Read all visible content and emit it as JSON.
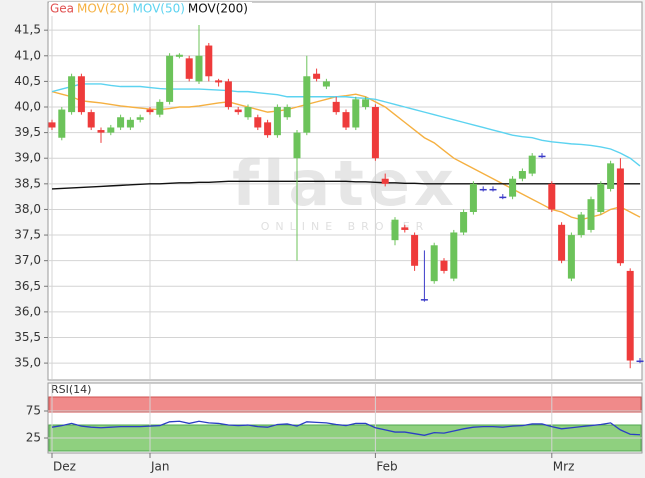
{
  "chart_data": [
    {
      "type": "candlestick",
      "name": "Gea",
      "name_color": "#e05050",
      "watermark": "flatex",
      "watermark_sub": "ONLINE BROKER",
      "categories": [
        "Dez",
        null,
        null,
        null,
        null,
        null,
        null,
        null,
        null,
        null,
        "Jan",
        null,
        null,
        null,
        null,
        null,
        null,
        null,
        null,
        null,
        null,
        null,
        null,
        null,
        null,
        null,
        null,
        null,
        null,
        null,
        null,
        null,
        null,
        "Feb",
        null,
        null,
        null,
        null,
        null,
        null,
        null,
        null,
        null,
        null,
        null,
        null,
        null,
        null,
        null,
        null,
        null,
        "Mrz",
        null,
        null,
        null,
        null,
        null,
        null,
        null,
        null,
        null
      ],
      "open": [
        39.7,
        39.4,
        39.9,
        40.6,
        39.9,
        39.55,
        39.5,
        39.6,
        39.6,
        39.75,
        39.95,
        39.85,
        40.1,
        40.98,
        40.95,
        40.5,
        41.2,
        40.52,
        40.5,
        39.95,
        39.8,
        39.8,
        39.7,
        39.45,
        39.8,
        39.0,
        39.5,
        40.65,
        40.4,
        40.1,
        39.9,
        39.6,
        40.0,
        40.0,
        38.6,
        37.4,
        37.65,
        37.5,
        36.25,
        36.6,
        37.0,
        36.65,
        37.55,
        37.95,
        38.4,
        38.4,
        38.25,
        38.25,
        38.6,
        38.7,
        39.05,
        38.5,
        37.7,
        36.65,
        37.5,
        37.6,
        37.95,
        38.4,
        38.8,
        36.8,
        35.05
      ],
      "high": [
        39.75,
        40.0,
        40.65,
        40.65,
        39.95,
        39.6,
        39.65,
        39.85,
        39.8,
        39.85,
        40.0,
        40.15,
        41.05,
        41.05,
        41.0,
        41.6,
        41.25,
        40.55,
        40.55,
        40.0,
        40.05,
        39.85,
        39.75,
        40.05,
        40.05,
        39.55,
        41.0,
        40.75,
        40.55,
        40.2,
        39.95,
        40.2,
        40.2,
        40.05,
        38.7,
        37.85,
        37.7,
        37.55,
        37.2,
        37.35,
        37.05,
        37.6,
        38.0,
        38.55,
        38.45,
        38.45,
        38.3,
        38.65,
        38.8,
        39.1,
        39.1,
        38.55,
        37.75,
        37.55,
        37.95,
        38.25,
        38.55,
        38.95,
        39.0,
        36.85,
        35.1
      ],
      "low": [
        39.55,
        39.35,
        39.85,
        39.85,
        39.55,
        39.3,
        39.45,
        39.55,
        39.55,
        39.7,
        39.85,
        39.8,
        40.05,
        40.95,
        40.5,
        40.45,
        40.5,
        40.4,
        39.95,
        39.85,
        39.75,
        39.55,
        39.4,
        39.4,
        39.75,
        37.0,
        39.45,
        40.5,
        40.35,
        39.85,
        39.55,
        39.55,
        39.95,
        38.95,
        38.45,
        37.3,
        37.55,
        36.8,
        36.2,
        36.55,
        36.75,
        36.6,
        37.5,
        37.9,
        38.35,
        38.35,
        38.2,
        38.2,
        38.55,
        38.65,
        39.0,
        37.95,
        36.95,
        36.6,
        37.45,
        37.55,
        37.9,
        38.35,
        36.9,
        34.9,
        35.0
      ],
      "close": [
        39.6,
        39.95,
        40.6,
        39.9,
        39.6,
        39.5,
        39.6,
        39.8,
        39.75,
        39.8,
        39.9,
        40.1,
        41.0,
        41.02,
        40.55,
        41.0,
        40.6,
        40.48,
        40.0,
        39.9,
        40.0,
        39.6,
        39.45,
        40.0,
        40.0,
        39.5,
        40.6,
        40.55,
        40.5,
        39.9,
        39.6,
        40.15,
        40.15,
        39.0,
        38.5,
        37.8,
        37.6,
        36.9,
        36.25,
        37.3,
        36.8,
        37.55,
        37.95,
        38.5,
        38.4,
        38.4,
        38.25,
        38.6,
        38.75,
        39.05,
        39.05,
        38.0,
        37.0,
        37.5,
        37.9,
        38.2,
        38.5,
        38.9,
        36.95,
        35.05,
        35.05
      ],
      "up_color": "#6cc35a",
      "down_color": "#ee3b3b",
      "doji_color": "#3a3ac8",
      "series": [
        {
          "name": "MOV(20)",
          "color": "#f5b041",
          "values": [
            40.3,
            40.25,
            40.2,
            40.12,
            40.1,
            40.08,
            40.05,
            40.02,
            40.0,
            39.98,
            39.96,
            39.95,
            39.97,
            40.0,
            40.0,
            40.02,
            40.05,
            40.08,
            40.1,
            40.05,
            40.0,
            39.95,
            39.9,
            39.92,
            39.95,
            40.0,
            40.05,
            40.1,
            40.15,
            40.2,
            40.22,
            40.25,
            40.2,
            40.1,
            40.0,
            39.85,
            39.7,
            39.55,
            39.4,
            39.3,
            39.15,
            39.0,
            38.9,
            38.8,
            38.7,
            38.6,
            38.5,
            38.4,
            38.3,
            38.2,
            38.1,
            38.0,
            37.95,
            37.85,
            37.8,
            37.85,
            37.9,
            38.0,
            38.05,
            37.95,
            37.85
          ]
        },
        {
          "name": "MOV(50)",
          "color": "#5cd3f0",
          "values": [
            40.3,
            40.35,
            40.4,
            40.45,
            40.45,
            40.45,
            40.42,
            40.4,
            40.4,
            40.4,
            40.38,
            40.36,
            40.35,
            40.35,
            40.35,
            40.35,
            40.34,
            40.33,
            40.32,
            40.3,
            40.3,
            40.28,
            40.26,
            40.24,
            40.2,
            40.2,
            40.2,
            40.2,
            40.2,
            40.2,
            40.2,
            40.18,
            40.17,
            40.15,
            40.1,
            40.05,
            40.0,
            39.95,
            39.9,
            39.85,
            39.8,
            39.75,
            39.7,
            39.65,
            39.6,
            39.55,
            39.5,
            39.45,
            39.42,
            39.4,
            39.35,
            39.32,
            39.3,
            39.28,
            39.27,
            39.25,
            39.22,
            39.18,
            39.1,
            39.0,
            38.85
          ]
        },
        {
          "name": "MOV(200)",
          "color": "#111111",
          "values": [
            38.4,
            38.41,
            38.42,
            38.43,
            38.44,
            38.45,
            38.46,
            38.47,
            38.48,
            38.49,
            38.5,
            38.5,
            38.51,
            38.52,
            38.52,
            38.53,
            38.53,
            38.54,
            38.55,
            38.55,
            38.55,
            38.55,
            38.55,
            38.55,
            38.55,
            38.55,
            38.55,
            38.55,
            38.55,
            38.55,
            38.55,
            38.54,
            38.54,
            38.53,
            38.52,
            38.52,
            38.51,
            38.51,
            38.5,
            38.5,
            38.5,
            38.5,
            38.5,
            38.5,
            38.5,
            38.5,
            38.5,
            38.5,
            38.5,
            38.5,
            38.5,
            38.5,
            38.5,
            38.5,
            38.5,
            38.5,
            38.5,
            38.5,
            38.5,
            38.5,
            38.5
          ]
        }
      ],
      "ylim": [
        34.67,
        42.05
      ],
      "yticks": [
        {
          "value": 35.0,
          "label": "35,0"
        },
        {
          "value": 35.5,
          "label": "35,5"
        },
        {
          "value": 36.0,
          "label": "36,0"
        },
        {
          "value": 36.5,
          "label": "36,5"
        },
        {
          "value": 37.0,
          "label": "37,0"
        },
        {
          "value": 37.5,
          "label": "37,5"
        },
        {
          "value": 38.0,
          "label": "38,0"
        },
        {
          "value": 38.5,
          "label": "38,5"
        },
        {
          "value": 39.0,
          "label": "39,0"
        },
        {
          "value": 39.5,
          "label": "39,5"
        },
        {
          "value": 40.0,
          "label": "40,0"
        },
        {
          "value": 40.5,
          "label": "40,5"
        },
        {
          "value": 41.0,
          "label": "41,0"
        },
        {
          "value": 41.5,
          "label": "41,5"
        }
      ],
      "grid": true
    },
    {
      "type": "line",
      "title": "RSI(14)",
      "color": "#2b3fc4",
      "values": [
        45,
        48,
        52,
        47,
        45,
        44,
        45,
        46,
        46,
        46,
        47,
        48,
        55,
        56,
        52,
        56,
        53,
        52,
        49,
        48,
        49,
        46,
        45,
        50,
        51,
        47,
        55,
        54,
        53,
        50,
        48,
        52,
        52,
        44,
        40,
        36,
        36,
        33,
        30,
        35,
        34,
        38,
        42,
        45,
        46,
        46,
        45,
        47,
        48,
        51,
        51,
        46,
        42,
        44,
        46,
        48,
        50,
        53,
        40,
        32,
        31
      ],
      "ylim": [
        0,
        100
      ],
      "yticks": [
        25,
        75
      ],
      "grid": true
    }
  ]
}
